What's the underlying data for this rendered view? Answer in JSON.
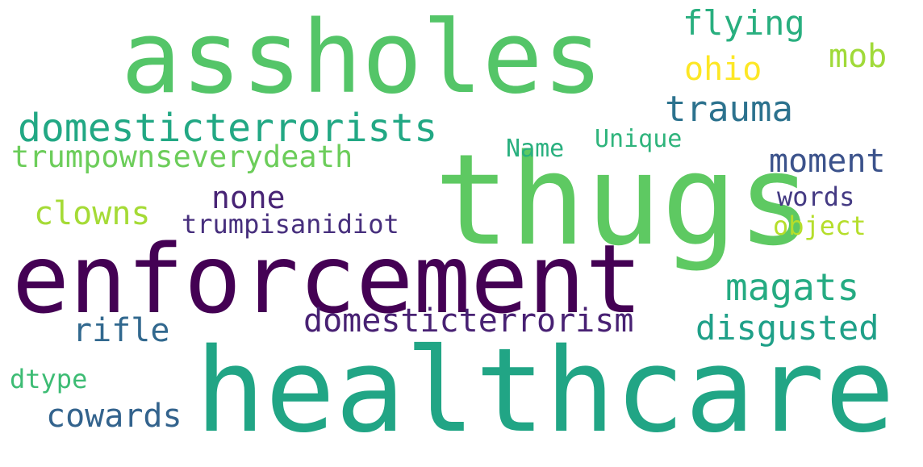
{
  "words": [
    {
      "text": "assholes",
      "color": "#54c568"
    },
    {
      "text": "thugs",
      "color": "#5ec962"
    },
    {
      "text": "enforcement",
      "color": "#440154"
    },
    {
      "text": "healthcare",
      "color": "#21a585"
    },
    {
      "text": "domesticterrorists",
      "color": "#22a884"
    },
    {
      "text": "trumpownseverydeath",
      "color": "#6ccd5a"
    },
    {
      "text": "trauma",
      "color": "#2c728e"
    },
    {
      "text": "flying",
      "color": "#29af7f"
    },
    {
      "text": "mob",
      "color": "#a0da39"
    },
    {
      "text": "ohio",
      "color": "#fde725"
    },
    {
      "text": "Name",
      "color": "#2ab07f"
    },
    {
      "text": "Unique",
      "color": "#2fb47c"
    },
    {
      "text": "moment",
      "color": "#3b528b"
    },
    {
      "text": "none",
      "color": "#482475"
    },
    {
      "text": "clowns",
      "color": "#a5db36"
    },
    {
      "text": "trumpisanidiot",
      "color": "#472f7d"
    },
    {
      "text": "words",
      "color": "#443a83"
    },
    {
      "text": "object",
      "color": "#b5de2b"
    },
    {
      "text": "magats",
      "color": "#25ab82"
    },
    {
      "text": "rifle",
      "color": "#31688e"
    },
    {
      "text": "domesticterrorism",
      "color": "#482173"
    },
    {
      "text": "disgusted",
      "color": "#1fa088"
    },
    {
      "text": "dtype",
      "color": "#3dbc74"
    },
    {
      "text": "cowards",
      "color": "#33638d"
    }
  ]
}
